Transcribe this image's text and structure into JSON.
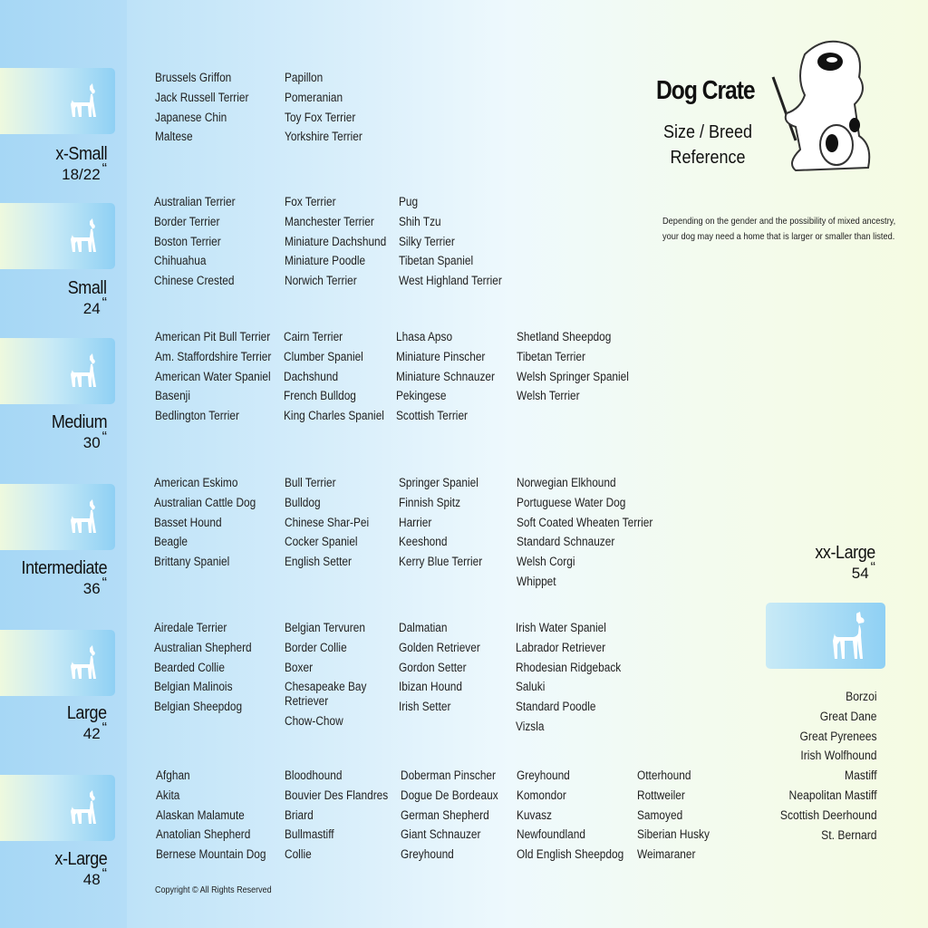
{
  "header": {
    "title": "Dog Crate",
    "subtitle": "Size / Breed Reference",
    "note_line1": "Depending on the gender and the possibility of mixed ancestry,",
    "note_line2": "your dog may need  a home that is larger or smaller than listed."
  },
  "sections": [
    {
      "name": "x-Small",
      "size": "18/22",
      "icon": "papillon-silhouette-icon",
      "columns": [
        [
          "Brussels Griffon",
          "Jack Russell Terrier",
          "Japanese Chin",
          "Maltese"
        ],
        [
          "Papillon",
          "Pomeranian",
          "Toy Fox Terrier",
          "Yorkshire Terrier"
        ]
      ]
    },
    {
      "name": "Small",
      "size": "24",
      "icon": "shih-tzu-silhouette-icon",
      "columns": [
        [
          "Australian Terrier",
          "Border Terrier",
          "Boston Terrier",
          "Chihuahua",
          "Chinese Crested"
        ],
        [
          "Fox Terrier",
          "Manchester Terrier",
          "Miniature Dachshund",
          "Miniature Poodle",
          "Norwich Terrier"
        ],
        [
          "Pug",
          "Shih Tzu",
          "Silky Terrier",
          "Tibetan Spaniel",
          "West Highland Terrier"
        ]
      ]
    },
    {
      "name": "Medium",
      "size": "30",
      "icon": "terrier-silhouette-icon",
      "columns": [
        [
          "American Pit Bull Terrier",
          "Am. Staffordshire Terrier",
          "American Water Spaniel",
          "Basenji",
          "Bedlington Terrier"
        ],
        [
          "Cairn Terrier",
          "Clumber Spaniel",
          "Dachshund",
          "French Bulldog",
          "King Charles Spaniel"
        ],
        [
          "Lhasa Apso",
          "Miniature Pinscher",
          "Miniature Schnauzer",
          "Pekingese",
          "Scottish Terrier"
        ],
        [
          "Shetland Sheepdog",
          "Tibetan Terrier",
          "Welsh Springer Spaniel",
          "Welsh Terrier"
        ]
      ]
    },
    {
      "name": "Intermediate",
      "size": "36",
      "icon": "spaniel-silhouette-icon",
      "columns": [
        [
          "American Eskimo",
          "Australian Cattle Dog",
          "Basset Hound",
          "Beagle",
          "Brittany Spaniel"
        ],
        [
          "Bull Terrier",
          "Bulldog",
          "Chinese Shar-Pei",
          "Cocker Spaniel",
          "English Setter"
        ],
        [
          "Springer Spaniel",
          "Finnish Spitz",
          "Harrier",
          "Keeshond",
          "Kerry Blue Terrier"
        ],
        [
          "Norwegian Elkhound",
          "Portuguese Water Dog",
          "Soft Coated Wheaten Terrier",
          "Standard Schnauzer",
          "Welsh Corgi",
          "Whippet"
        ]
      ]
    },
    {
      "name": "Large",
      "size": "42",
      "icon": "retriever-silhouette-icon",
      "columns": [
        [
          "Airedale Terrier",
          "Australian Shepherd",
          "Bearded Collie",
          "Belgian Malinois",
          "Belgian Sheepdog"
        ],
        [
          "Belgian Tervuren",
          "Border Collie",
          "Boxer",
          "Chesapeake Bay Retriever",
          "Chow-Chow"
        ],
        [
          "Dalmatian",
          "Golden Retriever",
          "Gordon Setter",
          "Ibizan Hound",
          "Irish Setter"
        ],
        [
          "Irish Water Spaniel",
          "Labrador Retriever",
          "Rhodesian Ridgeback",
          "Saluki",
          "Standard Poodle",
          "Vizsla"
        ]
      ]
    },
    {
      "name": "x-Large",
      "size": "48",
      "icon": "husky-silhouette-icon",
      "columns": [
        [
          "Afghan",
          "Akita",
          "Alaskan Malamute",
          "Anatolian Shepherd",
          "Bernese Mountain Dog"
        ],
        [
          "Bloodhound",
          "Bouvier Des Flandres",
          "Briard",
          "Bullmastiff",
          "Collie"
        ],
        [
          "Doberman Pinscher",
          "Dogue De Bordeaux",
          "German Shepherd",
          "Giant Schnauzer",
          "Greyhound"
        ],
        [
          "Greyhound",
          "Komondor",
          "Kuvasz",
          "Newfoundland",
          "Old English Sheepdog"
        ],
        [
          "Otterhound",
          "Rottweiler",
          "Samoyed",
          "Siberian Husky",
          "Weimaraner"
        ]
      ]
    }
  ],
  "xx_large": {
    "name": "xx-Large",
    "size": "54",
    "icon": "great-dane-silhouette-icon",
    "breeds": [
      "Borzoi",
      "Great Dane",
      "Great Pyrenees",
      "Irish Wolfhound",
      "Mastiff",
      "Neapolitan Mastiff",
      "Scottish Deerhound",
      "St. Bernard"
    ]
  },
  "inch_mark": "“",
  "copyright": "Copyright © All Rights Reserved",
  "colors": {
    "left_blue": "#a9d9f6",
    "tile_blue": "#8fd0f4",
    "right_yellow": "#f5fbe2"
  }
}
